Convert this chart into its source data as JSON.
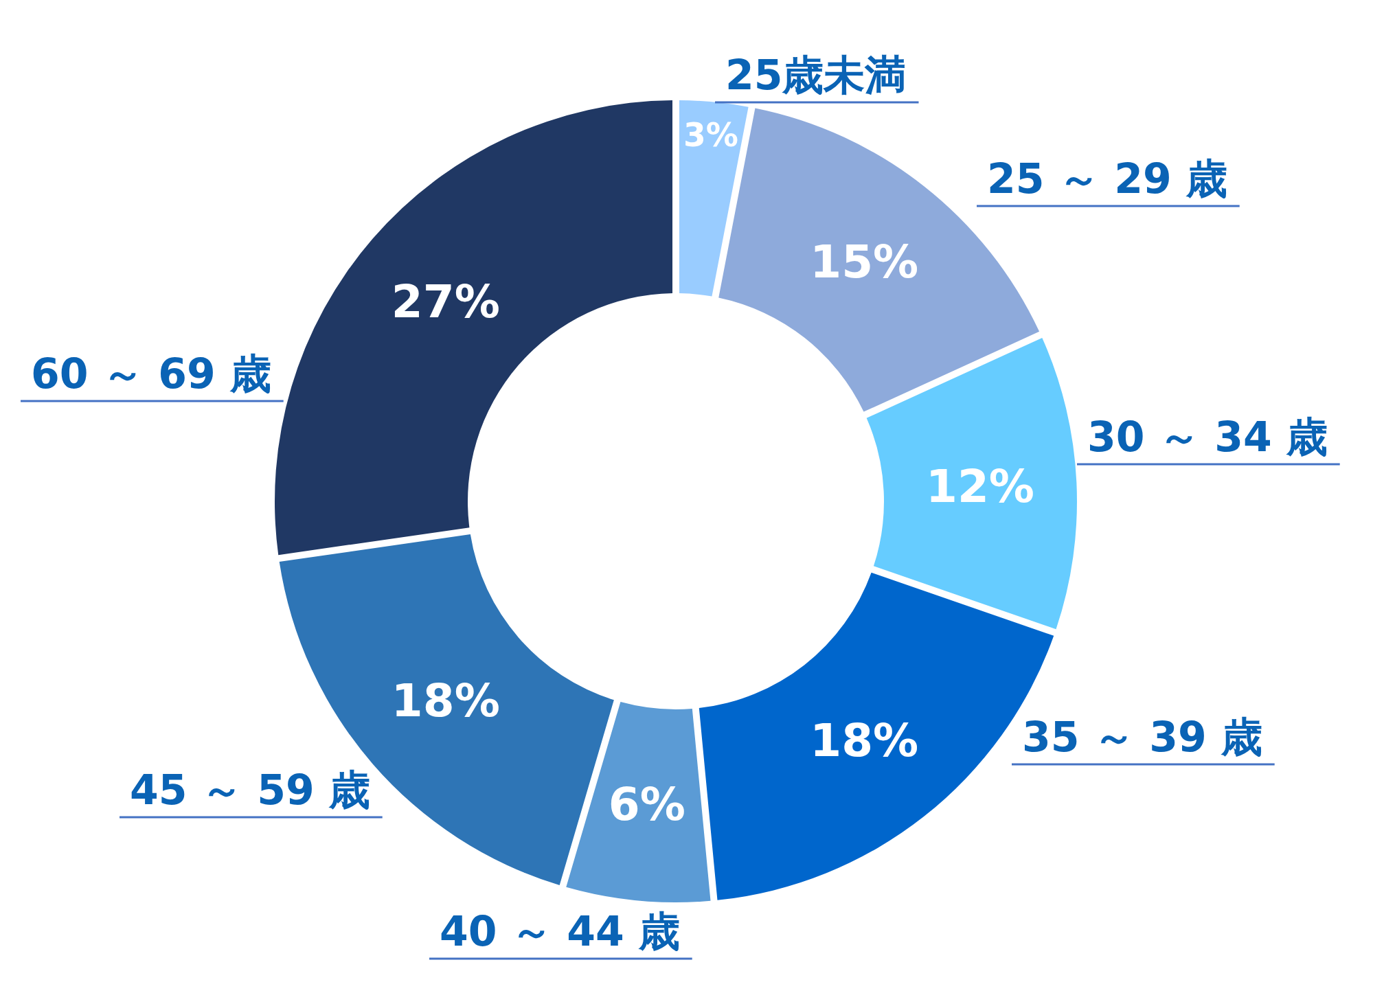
{
  "chart_data": {
    "type": "donut",
    "categories": [
      "25歳未満",
      "25 ～ 29 歳",
      "30 ～ 34 歳",
      "35 ～ 39 歳",
      "40 ～ 44 歳",
      "45 ～ 59 歳",
      "60 ～ 69 歳"
    ],
    "values": [
      3,
      15,
      12,
      18,
      6,
      18,
      27
    ],
    "value_labels": [
      "3%",
      "15%",
      "12%",
      "18%",
      "6%",
      "18%",
      "27%"
    ],
    "colors": [
      "#99ccff",
      "#8eaadb",
      "#66ccff",
      "#0066cc",
      "#5b9bd5",
      "#2e75b6",
      "#203864"
    ]
  }
}
